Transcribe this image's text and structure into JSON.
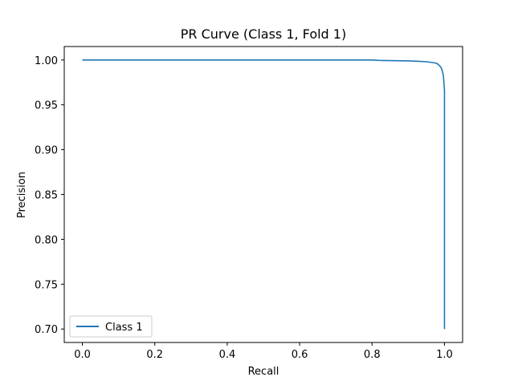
{
  "chart_data": {
    "type": "line",
    "title": "PR Curve (Class 1, Fold 1)",
    "xlabel": "Recall",
    "ylabel": "Precision",
    "xlim": [
      -0.05,
      1.05
    ],
    "ylim": [
      0.685,
      1.015
    ],
    "xticks": [
      0.0,
      0.2,
      0.4,
      0.6,
      0.8,
      1.0
    ],
    "xtick_labels": [
      "0.0",
      "0.2",
      "0.4",
      "0.6",
      "0.8",
      "1.0"
    ],
    "yticks": [
      0.7,
      0.75,
      0.8,
      0.85,
      0.9,
      0.95,
      1.0
    ],
    "ytick_labels": [
      "0.70",
      "0.75",
      "0.80",
      "0.85",
      "0.90",
      "0.95",
      "1.00"
    ],
    "grid": false,
    "legend_position": "lower-left",
    "series": [
      {
        "name": "Class 1",
        "color": "#1f77b4",
        "x": [
          0.0,
          0.1,
          0.2,
          0.3,
          0.4,
          0.5,
          0.6,
          0.7,
          0.8,
          0.82,
          0.85,
          0.9,
          0.93,
          0.95,
          0.97,
          0.98,
          0.985,
          0.99,
          0.993,
          0.995,
          0.997,
          0.998,
          0.999,
          1.0,
          1.0,
          1.0,
          1.0
        ],
        "y": [
          1.0,
          1.0,
          1.0,
          1.0,
          1.0,
          1.0,
          1.0,
          1.0,
          1.0,
          0.9995,
          0.9993,
          0.999,
          0.9985,
          0.998,
          0.997,
          0.996,
          0.994,
          0.992,
          0.989,
          0.986,
          0.982,
          0.977,
          0.972,
          0.965,
          0.9,
          0.8,
          0.7
        ]
      }
    ]
  }
}
